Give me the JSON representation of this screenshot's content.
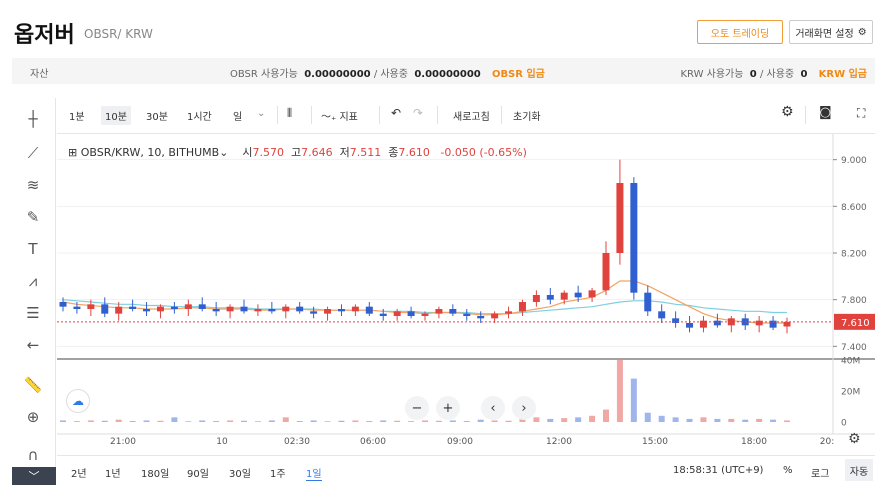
{
  "header": {
    "coin_name": "옵저버",
    "pair": "OBSR/ KRW",
    "auto_trading": "오토 트레이딩",
    "screen_settings": "거래화면 설정"
  },
  "asset_bar": {
    "label": "자산",
    "obsr_available_label": "OBSR 사용가능",
    "obsr_available": "0.00000000",
    "obsr_in_use_label": "/ 사용중",
    "obsr_in_use": "0.00000000",
    "obsr_deposit": "OBSR 입금",
    "krw_available_label": "KRW 사용가능",
    "krw_available": "0",
    "krw_in_use_label": "/ 사용중",
    "krw_in_use": "0",
    "krw_deposit": "KRW 입금"
  },
  "toolbar": {
    "intervals": [
      "1분",
      "10분",
      "30분",
      "1시간",
      "일"
    ],
    "active_interval": "10분",
    "indicator": "지표",
    "refresh": "새로고침",
    "reset": "초기화"
  },
  "legend": {
    "symbol": "OBSR/KRW, 10, BITHUMB",
    "open_label": "시",
    "open": "7.570",
    "high_label": "고",
    "high": "7.646",
    "low_label": "저",
    "low": "7.511",
    "close_label": "종",
    "close": "7.610",
    "change": "-0.050 (-0.65%)"
  },
  "bottom_bar": {
    "ranges": [
      "2년",
      "1년",
      "180일",
      "90일",
      "30일",
      "1주",
      "1일"
    ],
    "active_range": "1일",
    "time": "18:58:31 (UTC+9)",
    "percent": "%",
    "log": "로그",
    "auto": "자동"
  },
  "colors": {
    "up": "#e0433e",
    "down": "#2f5fd0",
    "ma_short": "#f4a361",
    "ma_long": "#7ecfe0",
    "accent": "#f08a14",
    "active_blue": "#2f7be5"
  },
  "chart_data": {
    "type": "candlestick",
    "price_axis_ticks": [
      "9.000",
      "8.600",
      "8.200",
      "7.800",
      "7.400"
    ],
    "price_range": [
      7.3,
      9.1
    ],
    "current_price": "7.610",
    "volume_axis_ticks": [
      "40M",
      "20M",
      "0"
    ],
    "volume_range": [
      0,
      40
    ],
    "time_ticks": [
      "21:00",
      "10",
      "02:30",
      "06:00",
      "09:00",
      "12:00",
      "15:00",
      "18:00",
      "20:"
    ],
    "candles": [
      {
        "o": 7.78,
        "h": 7.82,
        "l": 7.7,
        "c": 7.74
      },
      {
        "o": 7.74,
        "h": 7.78,
        "l": 7.68,
        "c": 7.72
      },
      {
        "o": 7.72,
        "h": 7.8,
        "l": 7.66,
        "c": 7.76
      },
      {
        "o": 7.76,
        "h": 7.82,
        "l": 7.65,
        "c": 7.68
      },
      {
        "o": 7.68,
        "h": 7.78,
        "l": 7.62,
        "c": 7.74
      },
      {
        "o": 7.74,
        "h": 7.8,
        "l": 7.7,
        "c": 7.72
      },
      {
        "o": 7.72,
        "h": 7.78,
        "l": 7.66,
        "c": 7.7
      },
      {
        "o": 7.7,
        "h": 7.76,
        "l": 7.64,
        "c": 7.74
      },
      {
        "o": 7.74,
        "h": 7.78,
        "l": 7.68,
        "c": 7.72
      },
      {
        "o": 7.72,
        "h": 7.8,
        "l": 7.66,
        "c": 7.76
      },
      {
        "o": 7.76,
        "h": 7.82,
        "l": 7.7,
        "c": 7.72
      },
      {
        "o": 7.72,
        "h": 7.78,
        "l": 7.66,
        "c": 7.7
      },
      {
        "o": 7.7,
        "h": 7.76,
        "l": 7.64,
        "c": 7.74
      },
      {
        "o": 7.74,
        "h": 7.8,
        "l": 7.68,
        "c": 7.7
      },
      {
        "o": 7.7,
        "h": 7.76,
        "l": 7.66,
        "c": 7.72
      },
      {
        "o": 7.72,
        "h": 7.78,
        "l": 7.68,
        "c": 7.7
      },
      {
        "o": 7.7,
        "h": 7.76,
        "l": 7.64,
        "c": 7.74
      },
      {
        "o": 7.74,
        "h": 7.78,
        "l": 7.68,
        "c": 7.7
      },
      {
        "o": 7.7,
        "h": 7.74,
        "l": 7.64,
        "c": 7.68
      },
      {
        "o": 7.68,
        "h": 7.74,
        "l": 7.62,
        "c": 7.72
      },
      {
        "o": 7.72,
        "h": 7.76,
        "l": 7.66,
        "c": 7.7
      },
      {
        "o": 7.7,
        "h": 7.76,
        "l": 7.66,
        "c": 7.74
      },
      {
        "o": 7.74,
        "h": 7.78,
        "l": 7.66,
        "c": 7.68
      },
      {
        "o": 7.68,
        "h": 7.72,
        "l": 7.62,
        "c": 7.66
      },
      {
        "o": 7.66,
        "h": 7.72,
        "l": 7.62,
        "c": 7.7
      },
      {
        "o": 7.7,
        "h": 7.74,
        "l": 7.64,
        "c": 7.66
      },
      {
        "o": 7.66,
        "h": 7.7,
        "l": 7.62,
        "c": 7.68
      },
      {
        "o": 7.68,
        "h": 7.74,
        "l": 7.64,
        "c": 7.72
      },
      {
        "o": 7.72,
        "h": 7.76,
        "l": 7.66,
        "c": 7.68
      },
      {
        "o": 7.68,
        "h": 7.72,
        "l": 7.62,
        "c": 7.66
      },
      {
        "o": 7.66,
        "h": 7.7,
        "l": 7.6,
        "c": 7.64
      },
      {
        "o": 7.64,
        "h": 7.7,
        "l": 7.6,
        "c": 7.68
      },
      {
        "o": 7.68,
        "h": 7.74,
        "l": 7.64,
        "c": 7.7
      },
      {
        "o": 7.7,
        "h": 7.8,
        "l": 7.66,
        "c": 7.78
      },
      {
        "o": 7.78,
        "h": 7.88,
        "l": 7.74,
        "c": 7.84
      },
      {
        "o": 7.84,
        "h": 7.9,
        "l": 7.76,
        "c": 7.8
      },
      {
        "o": 7.8,
        "h": 7.88,
        "l": 7.76,
        "c": 7.86
      },
      {
        "o": 7.86,
        "h": 7.92,
        "l": 7.78,
        "c": 7.82
      },
      {
        "o": 7.82,
        "h": 7.9,
        "l": 7.78,
        "c": 7.88
      },
      {
        "o": 7.88,
        "h": 8.3,
        "l": 7.84,
        "c": 8.2
      },
      {
        "o": 8.2,
        "h": 9.0,
        "l": 8.1,
        "c": 8.8
      },
      {
        "o": 8.8,
        "h": 8.85,
        "l": 7.8,
        "c": 7.86
      },
      {
        "o": 7.86,
        "h": 7.92,
        "l": 7.66,
        "c": 7.7
      },
      {
        "o": 7.7,
        "h": 7.76,
        "l": 7.6,
        "c": 7.64
      },
      {
        "o": 7.64,
        "h": 7.7,
        "l": 7.56,
        "c": 7.6
      },
      {
        "o": 7.6,
        "h": 7.66,
        "l": 7.52,
        "c": 7.56
      },
      {
        "o": 7.56,
        "h": 7.66,
        "l": 7.52,
        "c": 7.62
      },
      {
        "o": 7.62,
        "h": 7.68,
        "l": 7.56,
        "c": 7.58
      },
      {
        "o": 7.58,
        "h": 7.66,
        "l": 7.52,
        "c": 7.64
      },
      {
        "o": 7.64,
        "h": 7.68,
        "l": 7.54,
        "c": 7.58
      },
      {
        "o": 7.58,
        "h": 7.66,
        "l": 7.52,
        "c": 7.62
      },
      {
        "o": 7.62,
        "h": 7.66,
        "l": 7.54,
        "c": 7.56
      },
      {
        "o": 7.57,
        "h": 7.646,
        "l": 7.511,
        "c": 7.61
      }
    ],
    "volumes": [
      1,
      0.5,
      1,
      0.8,
      1.5,
      0.6,
      1,
      0.8,
      3,
      0.5,
      1,
      0.6,
      1,
      0.8,
      0.5,
      1,
      3,
      0.6,
      1,
      0.5,
      0.8,
      1,
      0.6,
      1,
      0.8,
      0.5,
      1,
      0.8,
      1,
      0.6,
      1.5,
      1,
      0.8,
      2,
      3,
      2,
      2.5,
      3,
      4,
      8,
      40,
      28,
      6,
      4,
      3,
      2,
      3,
      2,
      2,
      1.5,
      2,
      1.5,
      1
    ],
    "ma_short": [
      7.78,
      7.76,
      7.75,
      7.74,
      7.73,
      7.73,
      7.72,
      7.72,
      7.72,
      7.73,
      7.73,
      7.72,
      7.72,
      7.72,
      7.71,
      7.71,
      7.72,
      7.72,
      7.71,
      7.71,
      7.71,
      7.71,
      7.71,
      7.7,
      7.69,
      7.69,
      7.68,
      7.69,
      7.69,
      7.68,
      7.67,
      7.67,
      7.68,
      7.7,
      7.72,
      7.74,
      7.78,
      7.8,
      7.82,
      7.88,
      7.96,
      7.96,
      7.92,
      7.86,
      7.8,
      7.74,
      7.68,
      7.64,
      7.62,
      7.61,
      7.6,
      7.6,
      7.6
    ],
    "ma_long": [
      7.8,
      7.79,
      7.78,
      7.77,
      7.76,
      7.76,
      7.75,
      7.75,
      7.74,
      7.74,
      7.74,
      7.73,
      7.73,
      7.73,
      7.72,
      7.72,
      7.72,
      7.72,
      7.72,
      7.71,
      7.71,
      7.71,
      7.71,
      7.7,
      7.7,
      7.7,
      7.69,
      7.69,
      7.69,
      7.69,
      7.68,
      7.68,
      7.68,
      7.69,
      7.7,
      7.71,
      7.72,
      7.73,
      7.74,
      7.76,
      7.78,
      7.79,
      7.79,
      7.78,
      7.76,
      7.75,
      7.73,
      7.72,
      7.71,
      7.7,
      7.7,
      7.69,
      7.69
    ]
  }
}
